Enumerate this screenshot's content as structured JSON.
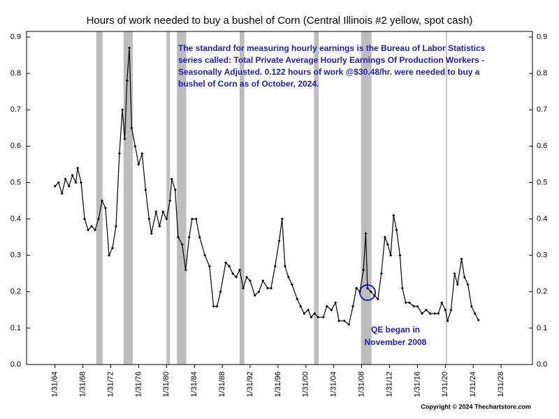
{
  "chart_data": {
    "type": "line",
    "title": "Hours of work needed to buy a bushel of Corn (Central Illinois #2 yellow, spot cash)",
    "annotations": [
      [
        "The standard for measuring hourly earnings is the Bureau of Labor Statistics",
        "series called:   Total Private Average Hourly Earnings Of Production Workers -",
        "Seasonally Adjusted.  0.122 hours of work @$30.48/hr. were needed to buy a",
        "bushel of Corn as of October, 2024."
      ],
      [
        "QE began in",
        "November 2008"
      ]
    ],
    "copyright": "Copyright © 2024 Thechartstore.com",
    "xlim": [
      "1960-01-01",
      "2032-08-01"
    ],
    "xticks": [
      {
        "value": "1964-01-31",
        "label": "1/31/64"
      },
      {
        "value": "1968-01-31",
        "label": "1/31/68"
      },
      {
        "value": "1972-01-31",
        "label": "1/31/72"
      },
      {
        "value": "1976-01-31",
        "label": "1/31/76"
      },
      {
        "value": "1980-01-31",
        "label": "1/31/80"
      },
      {
        "value": "1984-01-31",
        "label": "1/31/84"
      },
      {
        "value": "1988-01-31",
        "label": "1/31/88"
      },
      {
        "value": "1992-01-31",
        "label": "1/31/92"
      },
      {
        "value": "1996-01-31",
        "label": "1/31/96"
      },
      {
        "value": "2000-01-31",
        "label": "1/31/00"
      },
      {
        "value": "2004-01-31",
        "label": "1/31/04"
      },
      {
        "value": "2008-01-31",
        "label": "1/31/08"
      },
      {
        "value": "2012-01-31",
        "label": "1/31/12"
      },
      {
        "value": "2016-01-31",
        "label": "1/31/16"
      },
      {
        "value": "2020-01-31",
        "label": "1/31/20"
      },
      {
        "value": "2024-01-31",
        "label": "1/31/24"
      },
      {
        "value": "2028-01-31",
        "label": "1/31/28"
      }
    ],
    "ylim": [
      0,
      0.9
    ],
    "yticks": [
      {
        "value": 0,
        "label": "0.0"
      },
      0.1,
      0.2,
      0.3,
      0.4,
      0.5,
      0.6,
      0.7,
      0.8,
      0.9
    ],
    "y2lim": [
      0,
      0.9
    ],
    "y2ticks": [
      {
        "value": 0,
        "label": "0.0"
      },
      0.1,
      0.2,
      0.3,
      0.4,
      0.5,
      0.6,
      0.7,
      0.8,
      0.9
    ],
    "grid": false,
    "shade_color": "#bdbdbd",
    "shaded_periods": [
      [
        "1969-12-31",
        "1970-11-30"
      ],
      [
        "1973-11-30",
        "1975-03-31"
      ],
      [
        "1980-01-31",
        "1980-07-31"
      ],
      [
        "1981-07-31",
        "1982-11-30"
      ],
      [
        "1990-07-31",
        "1991-03-31"
      ],
      [
        "2001-03-31",
        "2001-11-30"
      ],
      [
        "2007-12-31",
        "2009-06-30"
      ],
      [
        "2020-02-29",
        "2020-04-30"
      ]
    ],
    "series": [
      {
        "color": "#000000",
        "x": [
          "1964-01-31",
          "1964-07-31",
          "1965-01-31",
          "1965-07-31",
          "1966-01-31",
          "1966-07-31",
          "1967-01-31",
          "1967-04-30",
          "1967-10-31",
          "1968-04-30",
          "1968-10-31",
          "1969-04-30",
          "1969-10-31",
          "1970-04-30",
          "1970-10-31",
          "1971-04-30",
          "1971-10-31",
          "1972-04-30",
          "1972-10-31",
          "1973-04-30",
          "1973-09-30",
          "1974-01-31",
          "1974-05-31",
          "1974-09-30",
          "1975-01-31",
          "1975-07-31",
          "1976-01-31",
          "1976-07-31",
          "1977-01-31",
          "1977-07-31",
          "1977-11-30",
          "1978-07-31",
          "1979-01-31",
          "1979-07-31",
          "1980-01-31",
          "1980-07-31",
          "1980-10-31",
          "1981-04-30",
          "1981-09-30",
          "1982-04-30",
          "1982-10-31",
          "1983-04-30",
          "1983-09-30",
          "1984-04-30",
          "1984-10-31",
          "1985-07-31",
          "1986-03-31",
          "1986-10-31",
          "1987-04-30",
          "1987-10-31",
          "1988-07-31",
          "1989-01-31",
          "1989-07-31",
          "1990-01-31",
          "1990-07-31",
          "1991-01-31",
          "1991-07-31",
          "1992-01-31",
          "1992-09-30",
          "1993-04-30",
          "1993-11-30",
          "1994-07-31",
          "1995-01-31",
          "1995-08-31",
          "1996-03-31",
          "1996-08-31",
          "1997-01-31",
          "1997-07-31",
          "1998-01-31",
          "1998-10-31",
          "1999-04-30",
          "1999-10-31",
          "2000-05-31",
          "2000-10-31",
          "2001-04-30",
          "2001-10-31",
          "2002-07-31",
          "2003-01-31",
          "2003-09-30",
          "2004-04-30",
          "2004-10-31",
          "2005-07-31",
          "2006-03-31",
          "2006-10-31",
          "2007-04-30",
          "2007-10-31",
          "2008-04-30",
          "2008-08-31",
          "2008-11-30",
          "2009-05-31",
          "2009-11-30",
          "2010-05-31",
          "2010-11-30",
          "2011-05-31",
          "2011-10-31",
          "2012-03-31",
          "2012-08-31",
          "2013-01-31",
          "2013-07-31",
          "2013-11-30",
          "2014-05-31",
          "2014-11-30",
          "2015-07-31",
          "2016-01-31",
          "2016-09-30",
          "2017-04-30",
          "2017-11-30",
          "2018-07-31",
          "2019-01-31",
          "2019-07-31",
          "2020-01-31",
          "2020-05-31",
          "2020-11-30",
          "2021-05-31",
          "2021-10-31",
          "2022-05-31",
          "2022-10-31",
          "2023-04-30",
          "2023-10-31",
          "2024-04-30",
          "2024-10-31"
        ],
        "values": [
          0.49,
          0.5,
          0.47,
          0.51,
          0.49,
          0.52,
          0.5,
          0.54,
          0.5,
          0.4,
          0.37,
          0.38,
          0.37,
          0.4,
          0.45,
          0.43,
          0.3,
          0.32,
          0.38,
          0.58,
          0.7,
          0.62,
          0.78,
          0.87,
          0.65,
          0.6,
          0.55,
          0.58,
          0.48,
          0.4,
          0.36,
          0.42,
          0.38,
          0.42,
          0.4,
          0.45,
          0.51,
          0.48,
          0.35,
          0.33,
          0.26,
          0.35,
          0.4,
          0.4,
          0.35,
          0.3,
          0.27,
          0.16,
          0.16,
          0.2,
          0.28,
          0.27,
          0.25,
          0.24,
          0.26,
          0.21,
          0.24,
          0.23,
          0.19,
          0.2,
          0.23,
          0.21,
          0.21,
          0.27,
          0.34,
          0.4,
          0.27,
          0.24,
          0.22,
          0.18,
          0.16,
          0.14,
          0.15,
          0.13,
          0.14,
          0.13,
          0.13,
          0.16,
          0.15,
          0.17,
          0.12,
          0.12,
          0.11,
          0.16,
          0.21,
          0.2,
          0.26,
          0.36,
          0.21,
          0.2,
          0.19,
          0.18,
          0.25,
          0.35,
          0.33,
          0.3,
          0.41,
          0.37,
          0.3,
          0.21,
          0.17,
          0.17,
          0.16,
          0.16,
          0.14,
          0.15,
          0.14,
          0.14,
          0.14,
          0.17,
          0.15,
          0.12,
          0.15,
          0.25,
          0.22,
          0.29,
          0.24,
          0.22,
          0.16,
          0.14,
          0.122
        ]
      }
    ]
  }
}
